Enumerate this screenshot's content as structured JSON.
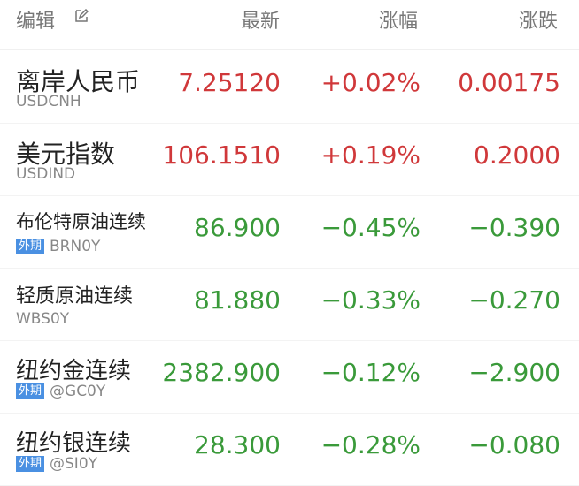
{
  "header": {
    "edit_label": "编辑",
    "col_latest": "最新",
    "col_pct": "涨幅",
    "col_change": "涨跌"
  },
  "colors": {
    "up": "#d0383a",
    "down": "#3a9a3a",
    "badge": "#4a90e2"
  },
  "rows": [
    {
      "name": "离岸人民币",
      "code": "USDCNH",
      "badge": "",
      "latest": "7.25120",
      "pct": "+0.02%",
      "change": "0.00175",
      "dir": "up"
    },
    {
      "name": "美元指数",
      "code": "USDIND",
      "badge": "",
      "latest": "106.1510",
      "pct": "+0.19%",
      "change": "0.2000",
      "dir": "up"
    },
    {
      "name": "布伦特原油连续",
      "code": "BRN0Y",
      "badge": "外期",
      "latest": "86.900",
      "pct": "−0.45%",
      "change": "−0.390",
      "dir": "down"
    },
    {
      "name": "轻质原油连续",
      "code": "WBS0Y",
      "badge": "",
      "latest": "81.880",
      "pct": "−0.33%",
      "change": "−0.270",
      "dir": "down"
    },
    {
      "name": "纽约金连续",
      "code": "@GC0Y",
      "badge": "外期",
      "latest": "2382.900",
      "pct": "−0.12%",
      "change": "−2.900",
      "dir": "down"
    },
    {
      "name": "纽约银连续",
      "code": "@SI0Y",
      "badge": "外期",
      "latest": "28.300",
      "pct": "−0.28%",
      "change": "−0.080",
      "dir": "down"
    }
  ]
}
